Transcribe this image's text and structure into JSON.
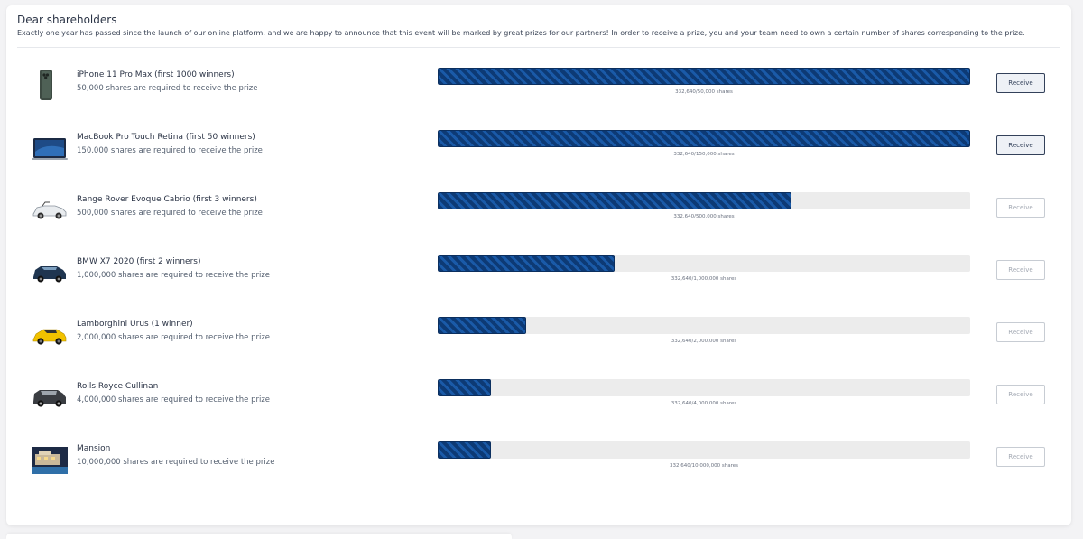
{
  "header": {
    "title": "Dear shareholders",
    "intro": "Exactly one year has passed since the launch of our online platform, and we are happy to announce that this event will be marked by great prizes for our partners! In order to receive a prize, you and your team need to own a certain number of shares corresponding to the prize."
  },
  "prizes": [
    {
      "name": "iPhone 11 Pro Max (first 1000 winners)",
      "requirement": "50,000 shares are required to receive the prize",
      "progress_text": "332,640/50,000 shares",
      "progress": 1.0,
      "button": "Receive",
      "enabled": true,
      "icon": "phone-icon"
    },
    {
      "name": "MacBook Pro Touch Retina (first 50 winners)",
      "requirement": "150,000 shares are required to receive the prize",
      "progress_text": "332,640/150,000 shares",
      "progress": 1.0,
      "button": "Receive",
      "enabled": true,
      "icon": "laptop-icon"
    },
    {
      "name": "Range Rover Evoque Cabrio (first 3 winners)",
      "requirement": "500,000 shares are required to receive the prize",
      "progress_text": "332,640/500,000 shares",
      "progress": 0.665,
      "button": "Receive",
      "enabled": false,
      "icon": "convertible-car-icon"
    },
    {
      "name": "BMW X7 2020 (first 2 winners)",
      "requirement": "1,000,000 shares are required to receive the prize",
      "progress_text": "332,640/1,000,000 shares",
      "progress": 0.333,
      "button": "Receive",
      "enabled": false,
      "icon": "suv-icon"
    },
    {
      "name": "Lamborghini Urus (1 winner)",
      "requirement": "2,000,000 shares are required to receive the prize",
      "progress_text": "332,640/2,000,000 shares",
      "progress": 0.166,
      "button": "Receive",
      "enabled": false,
      "icon": "sports-suv-icon"
    },
    {
      "name": "Rolls Royce Cullinan",
      "requirement": "4,000,000 shares are required to receive the prize",
      "progress_text": "332,640/4,000,000 shares",
      "progress": 0.1,
      "button": "Receive",
      "enabled": false,
      "icon": "luxury-suv-icon"
    },
    {
      "name": "Mansion",
      "requirement": "10,000,000 shares are required to receive the prize",
      "progress_text": "332,640/10,000,000 shares",
      "progress": 0.1,
      "button": "Receive",
      "enabled": false,
      "icon": "mansion-icon"
    }
  ],
  "colors": {
    "progress_fill": "#0d3a75",
    "progress_track": "#ececec",
    "button_active_border": "#33415a"
  }
}
